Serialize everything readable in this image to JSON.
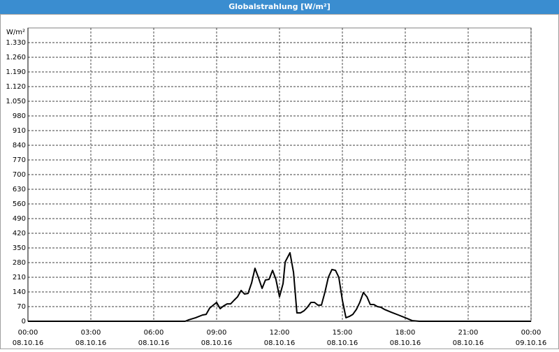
{
  "chart_data": {
    "type": "line",
    "title": "Globalstrahlung [W/m²]",
    "ylabel": "W/m²",
    "x": [
      0,
      7.5,
      7.67,
      8.0,
      8.33,
      8.5,
      8.67,
      9.0,
      9.17,
      9.33,
      9.5,
      9.67,
      9.83,
      10.0,
      10.17,
      10.33,
      10.5,
      10.67,
      10.83,
      11.0,
      11.17,
      11.33,
      11.5,
      11.67,
      11.83,
      12.0,
      12.17,
      12.27,
      12.5,
      12.67,
      12.83,
      13.0,
      13.17,
      13.33,
      13.5,
      13.67,
      13.83,
      14.0,
      14.17,
      14.33,
      14.5,
      14.67,
      14.83,
      15.0,
      15.17,
      15.33,
      15.5,
      15.67,
      15.83,
      16.0,
      16.17,
      16.33,
      16.5,
      16.67,
      16.83,
      17.0,
      17.33,
      17.67,
      18.0,
      18.33,
      18.67,
      24
    ],
    "series": [
      {
        "name": "Globalstrahlung",
        "color": "#000000",
        "values": [
          0,
          0,
          7,
          17,
          30,
          33,
          63,
          90,
          60,
          73,
          83,
          83,
          100,
          117,
          147,
          130,
          133,
          183,
          253,
          207,
          157,
          197,
          200,
          243,
          200,
          117,
          180,
          283,
          327,
          233,
          40,
          40,
          50,
          67,
          90,
          90,
          77,
          77,
          140,
          210,
          247,
          243,
          210,
          100,
          17,
          23,
          33,
          57,
          90,
          137,
          117,
          80,
          80,
          70,
          67,
          57,
          43,
          30,
          17,
          3,
          0,
          0
        ]
      }
    ],
    "xlim": [
      0,
      24
    ],
    "xticks": [
      {
        "value": 0,
        "label": "00:00"
      },
      {
        "value": 3,
        "label": "03:00"
      },
      {
        "value": 6,
        "label": "06:00"
      },
      {
        "value": 9,
        "label": "09:00"
      },
      {
        "value": 12,
        "label": "12:00"
      },
      {
        "value": 15,
        "label": "15:00"
      },
      {
        "value": 18,
        "label": "18:00"
      },
      {
        "value": 21,
        "label": "21:00"
      },
      {
        "value": 24,
        "label": "00:00"
      }
    ],
    "xtick_dates": [
      "08.10.16",
      "08.10.16",
      "08.10.16",
      "08.10.16",
      "08.10.16",
      "08.10.16",
      "08.10.16",
      "08.10.16",
      "09.10.16"
    ],
    "ylim": [
      0,
      1400
    ],
    "yticks": [
      0,
      70,
      140,
      210,
      280,
      350,
      420,
      490,
      560,
      630,
      700,
      770,
      840,
      910,
      980,
      {
        "value": 1050,
        "label": "1.050"
      },
      {
        "value": 1120,
        "label": "1.120"
      },
      {
        "value": 1190,
        "label": "1.190"
      },
      {
        "value": 1260,
        "label": "1.260"
      },
      {
        "value": 1330,
        "label": "1.330"
      }
    ],
    "grid": true
  }
}
